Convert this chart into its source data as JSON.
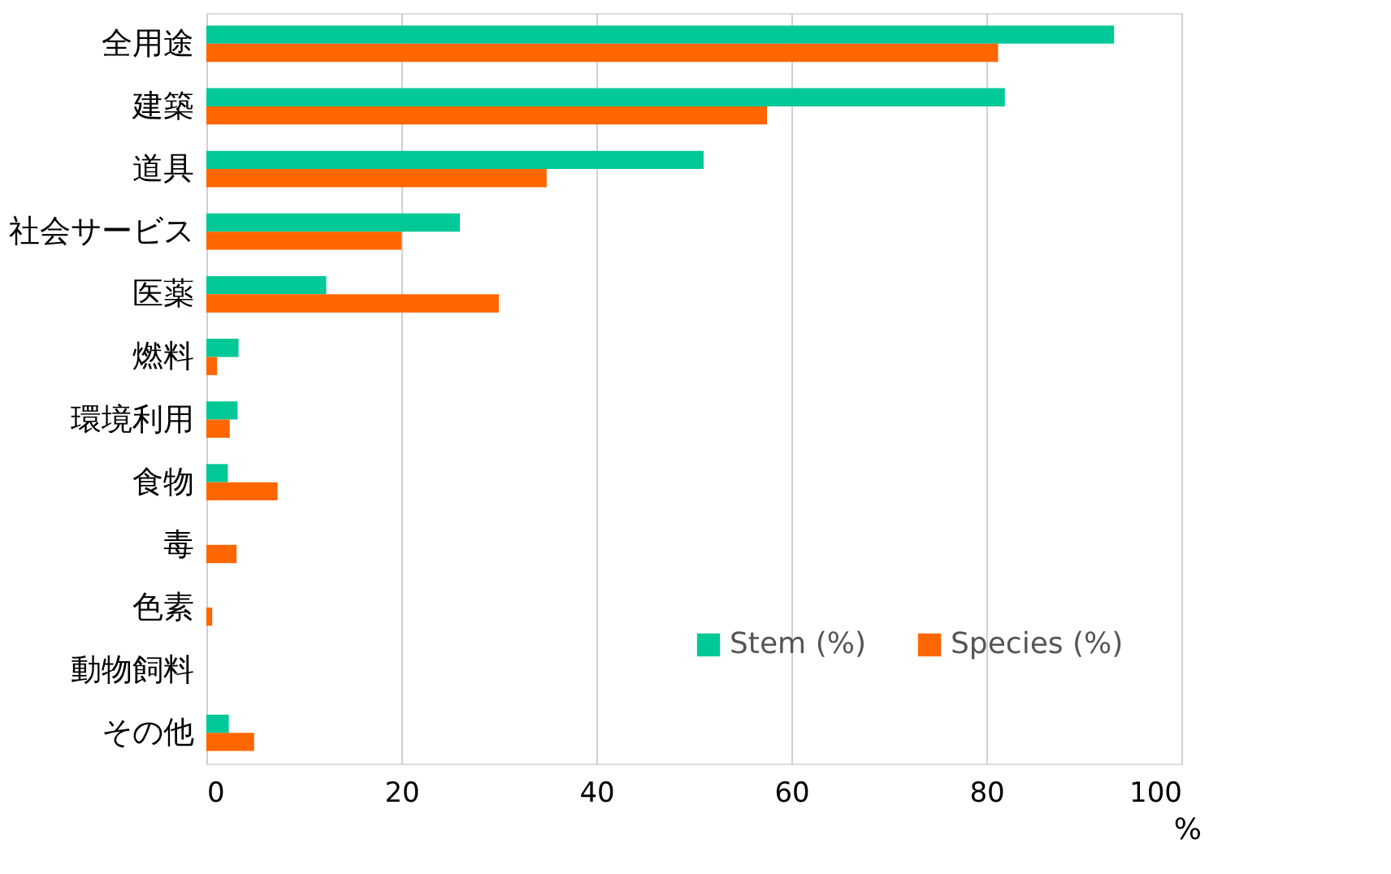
{
  "chart_data": {
    "type": "bar",
    "orientation": "horizontal",
    "xlabel": "%",
    "categories": [
      "全用途",
      "建築",
      "道具",
      "社会サービス",
      "医薬",
      "燃料",
      "環境利用",
      "食物",
      "毒",
      "色素",
      "動物飼料",
      "その他"
    ],
    "series": [
      {
        "name": "Stem (%)",
        "color": "#00c896",
        "values": [
          93.1,
          81.9,
          51.0,
          26.0,
          12.3,
          3.3,
          3.2,
          2.2,
          0,
          0,
          0,
          2.3
        ]
      },
      {
        "name": "Species (%)",
        "color": "#ff6600",
        "values": [
          81.2,
          57.5,
          34.9,
          20.0,
          30.0,
          1.1,
          2.4,
          7.3,
          3.1,
          0.6,
          0,
          4.9
        ]
      }
    ],
    "xlim": [
      0,
      100
    ],
    "xticks": [
      0,
      20,
      40,
      60,
      80,
      100
    ],
    "grid": "x",
    "legend": "bottom right"
  }
}
